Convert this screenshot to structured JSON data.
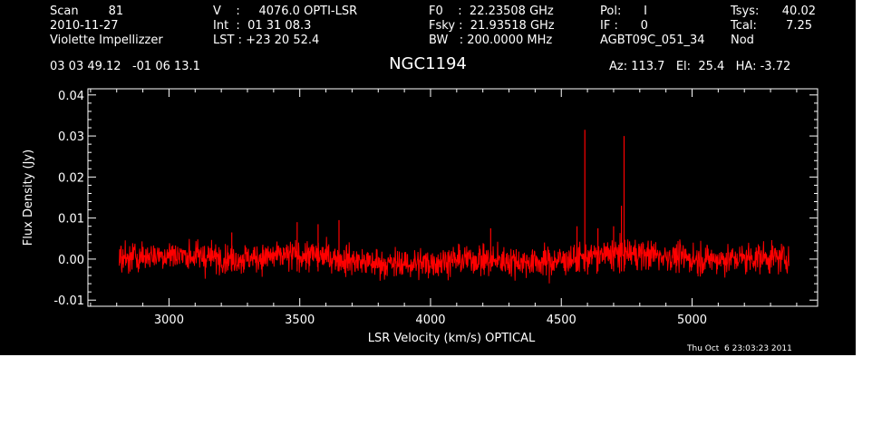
{
  "header": {
    "col1": [
      "Scan        81",
      "2010-11-27",
      "Violette Impellizzer"
    ],
    "col2": [
      "V    :     4076.0 OPTI-LSR",
      "Int  :  01 31 08.3",
      "LST : +23 20 52.4"
    ],
    "col3": [
      "F0    :  22.23508 GHz",
      "Fsky :  21.93518 GHz",
      "BW   : 200.0000 MHz"
    ],
    "col4": [
      "Pol:      I",
      "IF :      0",
      "AGBT09C_051_34"
    ],
    "col5_labels": [
      "Tsys:",
      "Tcal:",
      "Nod"
    ],
    "col5_values": [
      "40.02",
      "7.25",
      ""
    ],
    "coords": "03 03 49.12   -01 06 13.1",
    "source": "NGC1194",
    "pointing": "Az: 113.7   El:  25.4   HA: -3.72"
  },
  "timestamp": "Thu Oct  6 23:03:23 2011",
  "colors": {
    "background": "#000000",
    "axes": "#ffffff",
    "trace": "#ff0000"
  },
  "chart_data": {
    "type": "line",
    "title": "NGC1194",
    "xlabel": "LSR Velocity (km/s) OPTICAL",
    "ylabel": "Flux Density (Jy)",
    "xlim": [
      2690,
      5480
    ],
    "ylim": [
      -0.0115,
      0.0415
    ],
    "xticks": [
      3000,
      3500,
      4000,
      4500,
      5000
    ],
    "xtick_labels": [
      "3000",
      "3500",
      "4000",
      "4500",
      "5000"
    ],
    "yticks": [
      -0.01,
      0.0,
      0.01,
      0.02,
      0.03,
      0.04
    ],
    "ytick_labels": [
      "-0.01",
      "0.00",
      "0.01",
      "0.02",
      "0.03",
      "0.04"
    ],
    "grid": false,
    "series": [
      {
        "x_range": [
          2810,
          5370
        ],
        "noise_rms": 0.0018,
        "peaks": [
          {
            "x": 3240,
            "y": 0.0065
          },
          {
            "x": 3490,
            "y": 0.009
          },
          {
            "x": 3570,
            "y": 0.0085
          },
          {
            "x": 3650,
            "y": 0.0095
          },
          {
            "x": 4230,
            "y": 0.0075
          },
          {
            "x": 4560,
            "y": 0.008
          },
          {
            "x": 4590,
            "y": 0.0315
          },
          {
            "x": 4640,
            "y": 0.0075
          },
          {
            "x": 4700,
            "y": 0.008
          },
          {
            "x": 4740,
            "y": 0.03
          },
          {
            "x": 4730,
            "y": 0.013
          }
        ]
      }
    ]
  }
}
